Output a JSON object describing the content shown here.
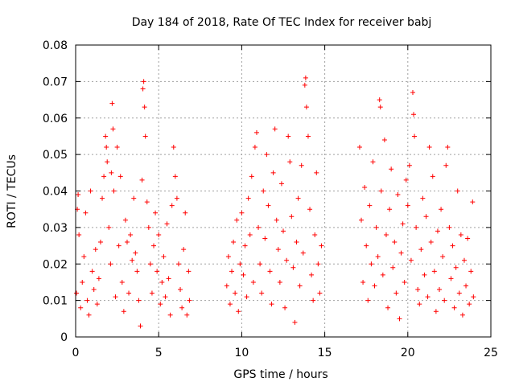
{
  "chart_data": {
    "type": "scatter",
    "title": "Day 184 of 2018, Rate Of TEC Index for receiver babj",
    "xlabel": "GPS time / hours",
    "ylabel": "ROTI / TECUs",
    "xlim": [
      0,
      25
    ],
    "ylim": [
      0,
      0.08
    ],
    "xticks": [
      0,
      5,
      10,
      15,
      20,
      25
    ],
    "yticks": [
      0,
      0.01,
      0.02,
      0.03,
      0.04,
      0.05,
      0.06,
      0.07,
      0.08
    ],
    "xtick_labels": [
      "0",
      "5",
      "10",
      "15",
      "20",
      "25"
    ],
    "ytick_labels": [
      "0",
      "0.01",
      "0.02",
      "0.03",
      "0.04",
      "0.05",
      "0.06",
      "0.07",
      "0.08"
    ],
    "grid": true,
    "marker": "+",
    "color": "#ff0000",
    "series": [
      {
        "name": "ROTI",
        "points": [
          [
            0.05,
            0.012
          ],
          [
            0.1,
            0.035
          ],
          [
            0.15,
            0.039
          ],
          [
            0.2,
            0.028
          ],
          [
            0.3,
            0.008
          ],
          [
            0.4,
            0.015
          ],
          [
            0.5,
            0.022
          ],
          [
            0.6,
            0.034
          ],
          [
            0.7,
            0.01
          ],
          [
            0.8,
            0.006
          ],
          [
            0.9,
            0.04
          ],
          [
            1.0,
            0.018
          ],
          [
            1.1,
            0.013
          ],
          [
            1.2,
            0.024
          ],
          [
            1.3,
            0.009
          ],
          [
            1.4,
            0.016
          ],
          [
            1.5,
            0.026
          ],
          [
            1.6,
            0.038
          ],
          [
            1.7,
            0.044
          ],
          [
            1.8,
            0.055
          ],
          [
            1.85,
            0.052
          ],
          [
            1.9,
            0.048
          ],
          [
            2.0,
            0.03
          ],
          [
            2.1,
            0.02
          ],
          [
            2.15,
            0.045
          ],
          [
            2.2,
            0.064
          ],
          [
            2.25,
            0.057
          ],
          [
            2.3,
            0.04
          ],
          [
            2.4,
            0.011
          ],
          [
            2.5,
            0.052
          ],
          [
            2.6,
            0.025
          ],
          [
            2.7,
            0.044
          ],
          [
            2.8,
            0.015
          ],
          [
            2.9,
            0.007
          ],
          [
            3.0,
            0.032
          ],
          [
            3.1,
            0.026
          ],
          [
            3.2,
            0.012
          ],
          [
            3.3,
            0.028
          ],
          [
            3.4,
            0.021
          ],
          [
            3.5,
            0.038
          ],
          [
            3.6,
            0.023
          ],
          [
            3.7,
            0.018
          ],
          [
            3.8,
            0.01
          ],
          [
            3.9,
            0.003
          ],
          [
            4.0,
            0.043
          ],
          [
            4.05,
            0.068
          ],
          [
            4.1,
            0.07
          ],
          [
            4.15,
            0.063
          ],
          [
            4.2,
            0.055
          ],
          [
            4.3,
            0.037
          ],
          [
            4.4,
            0.03
          ],
          [
            4.5,
            0.02
          ],
          [
            4.6,
            0.012
          ],
          [
            4.7,
            0.025
          ],
          [
            4.8,
            0.034
          ],
          [
            4.9,
            0.018
          ],
          [
            5.0,
            0.028
          ],
          [
            5.1,
            0.009
          ],
          [
            5.2,
            0.015
          ],
          [
            5.3,
            0.022
          ],
          [
            5.4,
            0.011
          ],
          [
            5.5,
            0.031
          ],
          [
            5.6,
            0.016
          ],
          [
            5.7,
            0.006
          ],
          [
            5.8,
            0.036
          ],
          [
            5.9,
            0.052
          ],
          [
            6.0,
            0.044
          ],
          [
            6.1,
            0.038
          ],
          [
            6.2,
            0.02
          ],
          [
            6.3,
            0.013
          ],
          [
            6.4,
            0.008
          ],
          [
            6.5,
            0.024
          ],
          [
            6.6,
            0.034
          ],
          [
            6.7,
            0.006
          ],
          [
            6.8,
            0.018
          ],
          [
            6.85,
            0.01
          ],
          [
            9.1,
            0.014
          ],
          [
            9.2,
            0.022
          ],
          [
            9.3,
            0.009
          ],
          [
            9.4,
            0.018
          ],
          [
            9.5,
            0.026
          ],
          [
            9.6,
            0.012
          ],
          [
            9.7,
            0.032
          ],
          [
            9.8,
            0.007
          ],
          [
            9.9,
            0.02
          ],
          [
            10.0,
            0.034
          ],
          [
            10.1,
            0.017
          ],
          [
            10.2,
            0.025
          ],
          [
            10.3,
            0.011
          ],
          [
            10.4,
            0.038
          ],
          [
            10.5,
            0.028
          ],
          [
            10.6,
            0.044
          ],
          [
            10.7,
            0.015
          ],
          [
            10.8,
            0.052
          ],
          [
            10.9,
            0.056
          ],
          [
            11.0,
            0.03
          ],
          [
            11.1,
            0.02
          ],
          [
            11.2,
            0.012
          ],
          [
            11.3,
            0.04
          ],
          [
            11.4,
            0.027
          ],
          [
            11.5,
            0.05
          ],
          [
            11.6,
            0.036
          ],
          [
            11.7,
            0.018
          ],
          [
            11.8,
            0.009
          ],
          [
            11.9,
            0.045
          ],
          [
            12.0,
            0.057
          ],
          [
            12.1,
            0.032
          ],
          [
            12.2,
            0.024
          ],
          [
            12.3,
            0.015
          ],
          [
            12.4,
            0.042
          ],
          [
            12.5,
            0.029
          ],
          [
            12.6,
            0.008
          ],
          [
            12.7,
            0.021
          ],
          [
            12.8,
            0.055
          ],
          [
            12.9,
            0.048
          ],
          [
            13.0,
            0.033
          ],
          [
            13.1,
            0.019
          ],
          [
            13.2,
            0.004
          ],
          [
            13.3,
            0.026
          ],
          [
            13.4,
            0.038
          ],
          [
            13.5,
            0.014
          ],
          [
            13.6,
            0.047
          ],
          [
            13.7,
            0.023
          ],
          [
            13.8,
            0.069
          ],
          [
            13.85,
            0.071
          ],
          [
            13.9,
            0.063
          ],
          [
            14.0,
            0.055
          ],
          [
            14.1,
            0.035
          ],
          [
            14.2,
            0.017
          ],
          [
            14.3,
            0.01
          ],
          [
            14.4,
            0.028
          ],
          [
            14.5,
            0.045
          ],
          [
            14.6,
            0.02
          ],
          [
            14.7,
            0.012
          ],
          [
            14.8,
            0.025
          ],
          [
            17.1,
            0.052
          ],
          [
            17.2,
            0.032
          ],
          [
            17.3,
            0.015
          ],
          [
            17.4,
            0.041
          ],
          [
            17.5,
            0.025
          ],
          [
            17.6,
            0.01
          ],
          [
            17.7,
            0.036
          ],
          [
            17.8,
            0.02
          ],
          [
            17.9,
            0.048
          ],
          [
            18.0,
            0.014
          ],
          [
            18.1,
            0.03
          ],
          [
            18.2,
            0.022
          ],
          [
            18.3,
            0.065
          ],
          [
            18.35,
            0.063
          ],
          [
            18.4,
            0.04
          ],
          [
            18.5,
            0.017
          ],
          [
            18.6,
            0.054
          ],
          [
            18.7,
            0.028
          ],
          [
            18.8,
            0.008
          ],
          [
            18.9,
            0.035
          ],
          [
            19.0,
            0.046
          ],
          [
            19.1,
            0.019
          ],
          [
            19.2,
            0.026
          ],
          [
            19.3,
            0.012
          ],
          [
            19.4,
            0.039
          ],
          [
            19.5,
            0.005
          ],
          [
            19.6,
            0.023
          ],
          [
            19.7,
            0.031
          ],
          [
            19.8,
            0.015
          ],
          [
            19.9,
            0.043
          ],
          [
            20.0,
            0.036
          ],
          [
            20.1,
            0.047
          ],
          [
            20.2,
            0.021
          ],
          [
            20.3,
            0.067
          ],
          [
            20.35,
            0.061
          ],
          [
            20.4,
            0.055
          ],
          [
            20.5,
            0.03
          ],
          [
            20.6,
            0.013
          ],
          [
            20.7,
            0.009
          ],
          [
            20.8,
            0.024
          ],
          [
            20.9,
            0.038
          ],
          [
            21.0,
            0.017
          ],
          [
            21.1,
            0.033
          ],
          [
            21.2,
            0.011
          ],
          [
            21.3,
            0.052
          ],
          [
            21.4,
            0.026
          ],
          [
            21.5,
            0.044
          ],
          [
            21.6,
            0.018
          ],
          [
            21.7,
            0.007
          ],
          [
            21.8,
            0.029
          ],
          [
            21.9,
            0.013
          ],
          [
            22.0,
            0.035
          ],
          [
            22.1,
            0.022
          ],
          [
            22.2,
            0.01
          ],
          [
            22.3,
            0.047
          ],
          [
            22.4,
            0.052
          ],
          [
            22.5,
            0.03
          ],
          [
            22.6,
            0.016
          ],
          [
            22.7,
            0.025
          ],
          [
            22.8,
            0.008
          ],
          [
            22.9,
            0.019
          ],
          [
            23.0,
            0.04
          ],
          [
            23.1,
            0.012
          ],
          [
            23.2,
            0.028
          ],
          [
            23.3,
            0.006
          ],
          [
            23.4,
            0.021
          ],
          [
            23.5,
            0.014
          ],
          [
            23.6,
            0.027
          ],
          [
            23.7,
            0.009
          ],
          [
            23.8,
            0.018
          ],
          [
            23.9,
            0.037
          ],
          [
            23.95,
            0.011
          ]
        ]
      }
    ]
  }
}
